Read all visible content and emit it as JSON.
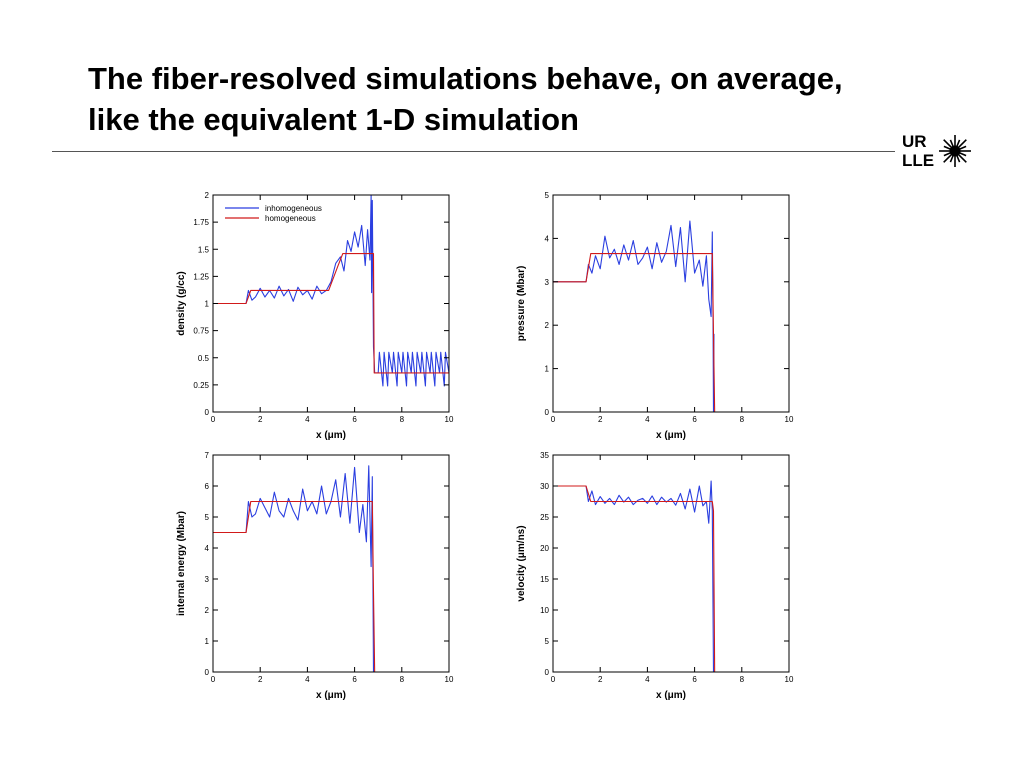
{
  "title": {
    "line1": "The fiber-resolved simulations behave, on average,",
    "line2": "like the equivalent 1-D simulation"
  },
  "logo": {
    "line1": "UR",
    "line2": "LLE",
    "icon": "starburst-icon"
  },
  "colors": {
    "inhomogeneous": "#2b3fe0",
    "homogeneous": "#d11a1a"
  },
  "chart_data": [
    {
      "type": "line",
      "xlabel": "x (μm)",
      "ylabel": "density (g/cc)",
      "xlim": [
        0,
        10
      ],
      "ylim": [
        0,
        2
      ],
      "xticks": [
        "0",
        "2",
        "4",
        "6",
        "8",
        "10"
      ],
      "yticks": [
        "0",
        "0.25",
        "0.5",
        "0.75",
        "1",
        "1.25",
        "1.5",
        "1.75",
        "2"
      ],
      "legend": {
        "position": "top-left",
        "entries": [
          "inhomogeneous",
          "homogeneous"
        ]
      },
      "series": [
        {
          "name": "inhomogeneous",
          "x": [
            0,
            1.4,
            1.5,
            1.65,
            1.8,
            2.0,
            2.2,
            2.4,
            2.6,
            2.8,
            3.0,
            3.2,
            3.4,
            3.6,
            3.8,
            4.0,
            4.2,
            4.4,
            4.6,
            4.8,
            5.0,
            5.2,
            5.4,
            5.55,
            5.7,
            5.85,
            6.0,
            6.15,
            6.3,
            6.45,
            6.55,
            6.65,
            6.7,
            6.72,
            6.75,
            6.8,
            6.85,
            7.0,
            7.05,
            7.2,
            7.25,
            7.4,
            7.45,
            7.6,
            7.65,
            7.8,
            7.85,
            8.0,
            8.05,
            8.2,
            8.25,
            8.4,
            8.45,
            8.6,
            8.65,
            8.8,
            8.85,
            9.0,
            9.05,
            9.2,
            9.25,
            9.4,
            9.45,
            9.6,
            9.65,
            9.8,
            9.85,
            10.0
          ],
          "y": [
            1.0,
            1.0,
            1.12,
            1.03,
            1.06,
            1.14,
            1.06,
            1.12,
            1.05,
            1.16,
            1.07,
            1.13,
            1.02,
            1.15,
            1.08,
            1.12,
            1.04,
            1.16,
            1.09,
            1.12,
            1.2,
            1.37,
            1.43,
            1.3,
            1.58,
            1.48,
            1.66,
            1.52,
            1.72,
            1.35,
            1.68,
            1.4,
            2.0,
            1.1,
            1.95,
            0.6,
            0.36,
            0.36,
            0.55,
            0.24,
            0.55,
            0.24,
            0.55,
            0.36,
            0.55,
            0.24,
            0.55,
            0.36,
            0.55,
            0.24,
            0.55,
            0.36,
            0.55,
            0.24,
            0.55,
            0.36,
            0.55,
            0.24,
            0.55,
            0.36,
            0.55,
            0.24,
            0.55,
            0.36,
            0.55,
            0.24,
            0.55,
            0.36
          ]
        },
        {
          "name": "homogeneous",
          "x": [
            0,
            1.4,
            1.6,
            4.9,
            5.3,
            5.5,
            6.8,
            6.83,
            10
          ],
          "y": [
            1.0,
            1.0,
            1.12,
            1.12,
            1.35,
            1.46,
            1.46,
            0.36,
            0.36
          ]
        }
      ]
    },
    {
      "type": "line",
      "xlabel": "x (μm)",
      "ylabel": "pressure (Mbar)",
      "xlim": [
        0,
        10
      ],
      "ylim": [
        0,
        5
      ],
      "xticks": [
        "0",
        "2",
        "4",
        "6",
        "8",
        "10"
      ],
      "yticks": [
        "0",
        "1",
        "2",
        "3",
        "4",
        "5"
      ],
      "series": [
        {
          "name": "inhomogeneous",
          "x": [
            0,
            1.4,
            1.5,
            1.65,
            1.8,
            2.0,
            2.2,
            2.4,
            2.6,
            2.8,
            3.0,
            3.2,
            3.4,
            3.6,
            3.8,
            4.0,
            4.2,
            4.4,
            4.6,
            4.8,
            5.0,
            5.2,
            5.4,
            5.6,
            5.8,
            6.0,
            6.2,
            6.35,
            6.5,
            6.6,
            6.7,
            6.75,
            6.78,
            6.8,
            6.82
          ],
          "y": [
            3.0,
            3.0,
            3.4,
            3.2,
            3.6,
            3.3,
            4.05,
            3.55,
            3.75,
            3.4,
            3.85,
            3.5,
            3.95,
            3.4,
            3.55,
            3.8,
            3.3,
            3.9,
            3.45,
            3.7,
            4.3,
            3.35,
            4.25,
            3.0,
            4.4,
            3.2,
            3.5,
            2.9,
            3.6,
            2.6,
            2.2,
            4.15,
            2.2,
            0.0,
            1.8
          ]
        },
        {
          "name": "homogeneous",
          "x": [
            0,
            1.4,
            1.6,
            6.75,
            6.8,
            6.85
          ],
          "y": [
            3.0,
            3.0,
            3.65,
            3.65,
            1.8,
            0.0
          ]
        }
      ]
    },
    {
      "type": "line",
      "xlabel": "x (μm)",
      "ylabel": "internal energy (Mbar)",
      "xlim": [
        0,
        10
      ],
      "ylim": [
        0,
        7
      ],
      "xticks": [
        "0",
        "2",
        "4",
        "6",
        "8",
        "10"
      ],
      "yticks": [
        "0",
        "1",
        "2",
        "3",
        "4",
        "5",
        "6",
        "7"
      ],
      "series": [
        {
          "name": "inhomogeneous",
          "x": [
            0,
            1.4,
            1.5,
            1.65,
            1.8,
            2.0,
            2.2,
            2.4,
            2.6,
            2.8,
            3.0,
            3.2,
            3.4,
            3.6,
            3.8,
            4.0,
            4.2,
            4.4,
            4.6,
            4.8,
            5.0,
            5.2,
            5.4,
            5.6,
            5.8,
            6.0,
            6.2,
            6.35,
            6.5,
            6.6,
            6.7,
            6.75,
            6.8,
            6.85,
            6.9,
            10.0
          ],
          "y": [
            4.5,
            4.5,
            5.5,
            5.0,
            5.1,
            5.6,
            5.3,
            5.0,
            5.8,
            5.2,
            5.0,
            5.6,
            5.2,
            4.9,
            5.9,
            5.2,
            5.5,
            5.1,
            6.0,
            5.1,
            5.5,
            6.2,
            5.0,
            6.4,
            4.8,
            6.6,
            4.5,
            5.4,
            4.2,
            6.65,
            3.4,
            6.3,
            0.0,
            0.0,
            0.0,
            0.0
          ]
        },
        {
          "name": "homogeneous",
          "x": [
            0,
            1.4,
            1.6,
            6.75,
            6.8,
            6.85,
            10
          ],
          "y": [
            4.5,
            4.5,
            5.5,
            5.5,
            2.6,
            0.0,
            0.0
          ]
        }
      ]
    },
    {
      "type": "line",
      "xlabel": "x (μm)",
      "ylabel": "velocity (μm/ns)",
      "xlim": [
        0,
        10
      ],
      "ylim": [
        0,
        35
      ],
      "xticks": [
        "0",
        "2",
        "4",
        "6",
        "8",
        "10"
      ],
      "yticks": [
        "0",
        "5",
        "10",
        "15",
        "20",
        "25",
        "30",
        "35"
      ],
      "series": [
        {
          "name": "inhomogeneous",
          "x": [
            0,
            1.4,
            1.5,
            1.65,
            1.8,
            2.0,
            2.2,
            2.4,
            2.6,
            2.8,
            3.0,
            3.2,
            3.4,
            3.6,
            3.8,
            4.0,
            4.2,
            4.4,
            4.6,
            4.8,
            5.0,
            5.2,
            5.4,
            5.6,
            5.8,
            6.0,
            6.2,
            6.35,
            6.5,
            6.6,
            6.7,
            6.75,
            6.8,
            6.85
          ],
          "y": [
            30.0,
            30.0,
            27.5,
            29.2,
            27.0,
            28.3,
            27.2,
            28.0,
            27.0,
            28.5,
            27.4,
            28.2,
            27.0,
            27.7,
            28.0,
            27.2,
            28.4,
            27.0,
            28.2,
            27.4,
            28.0,
            26.9,
            28.8,
            26.3,
            29.5,
            25.8,
            30.0,
            26.8,
            27.5,
            24.0,
            30.8,
            26.0,
            0.0,
            0.0
          ]
        },
        {
          "name": "homogeneous",
          "x": [
            0,
            1.4,
            1.6,
            6.75,
            6.8,
            6.85
          ],
          "y": [
            30.0,
            30.0,
            27.5,
            27.5,
            26.0,
            0.0
          ]
        }
      ]
    }
  ]
}
